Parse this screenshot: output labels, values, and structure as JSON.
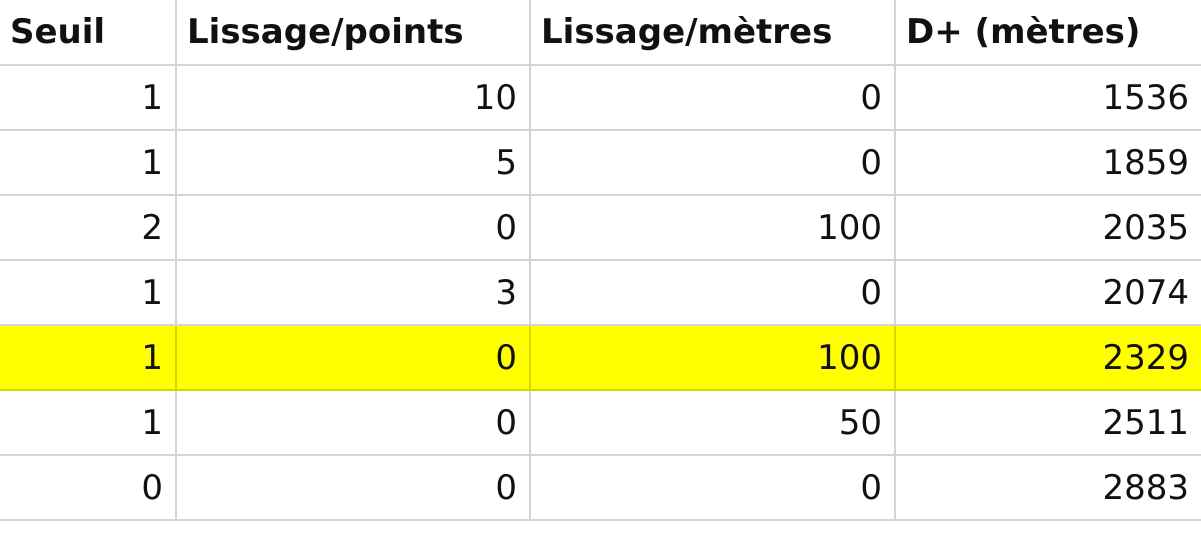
{
  "colors": {
    "highlight": "#ffff00",
    "gridline": "#d4d4d4"
  },
  "table": {
    "headers": [
      "Seuil",
      "Lissage/points",
      "Lissage/mètres",
      "D+ (mètres)"
    ],
    "highlighted_row": 4,
    "rows": [
      [
        "1",
        "10",
        "0",
        "1536"
      ],
      [
        "1",
        "5",
        "0",
        "1859"
      ],
      [
        "2",
        "0",
        "100",
        "2035"
      ],
      [
        "1",
        "3",
        "0",
        "2074"
      ],
      [
        "1",
        "0",
        "100",
        "2329"
      ],
      [
        "1",
        "0",
        "50",
        "2511"
      ],
      [
        "0",
        "0",
        "0",
        "2883"
      ]
    ]
  }
}
